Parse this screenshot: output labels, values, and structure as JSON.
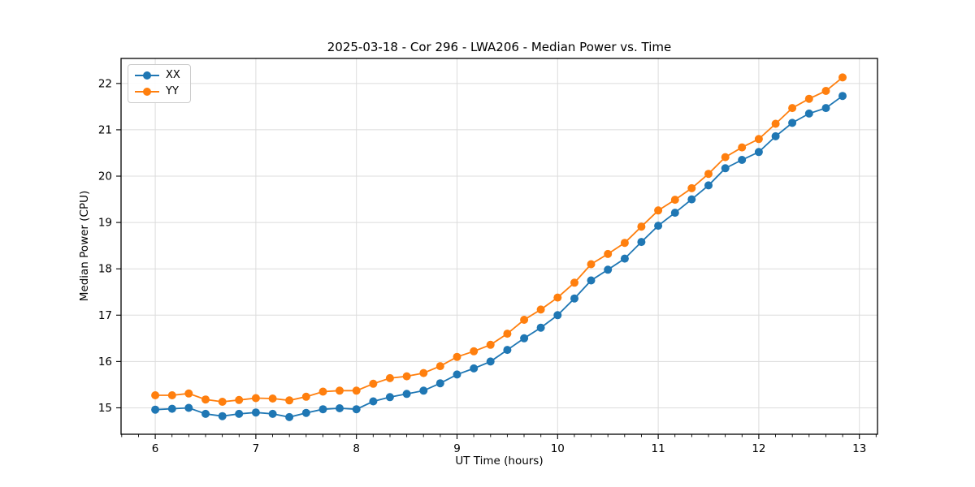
{
  "chart_data": {
    "type": "line",
    "title": "2025-03-18 - Cor 296 - LWA206 - Median Power vs. Time",
    "xlabel": "UT Time (hours)",
    "ylabel": "Median Power (CPU)",
    "xlim": [
      5.66,
      13.18
    ],
    "ylim": [
      14.43,
      22.54
    ],
    "xticks": [
      6,
      7,
      8,
      9,
      10,
      11,
      12,
      13
    ],
    "yticks": [
      15,
      16,
      17,
      18,
      19,
      20,
      21,
      22
    ],
    "grid": true,
    "grid_color": "#dcdcdc",
    "legend_position": "upper-left",
    "marker": "circle",
    "x": [
      6.0,
      6.167,
      6.333,
      6.5,
      6.667,
      6.833,
      7.0,
      7.167,
      7.333,
      7.5,
      7.667,
      7.833,
      8.0,
      8.167,
      8.333,
      8.5,
      8.667,
      8.833,
      9.0,
      9.167,
      9.333,
      9.5,
      9.667,
      9.833,
      10.0,
      10.167,
      10.333,
      10.5,
      10.667,
      10.833,
      11.0,
      11.167,
      11.333,
      11.5,
      11.667,
      11.833,
      12.0,
      12.167,
      12.333,
      12.5,
      12.667,
      12.833
    ],
    "series": [
      {
        "name": "XX",
        "color": "#1f77b4",
        "values": [
          14.96,
          14.98,
          15.0,
          14.87,
          14.82,
          14.87,
          14.9,
          14.87,
          14.8,
          14.89,
          14.97,
          14.99,
          14.97,
          15.14,
          15.23,
          15.3,
          15.37,
          15.53,
          15.72,
          15.85,
          16.0,
          16.25,
          16.5,
          16.73,
          17.0,
          17.36,
          17.75,
          17.98,
          18.22,
          18.58,
          18.93,
          19.21,
          19.5,
          19.8,
          20.17,
          20.35,
          20.52,
          20.86,
          21.15,
          21.35,
          21.47,
          21.73
        ]
      },
      {
        "name": "YY",
        "color": "#ff7f0e",
        "values": [
          15.27,
          15.27,
          15.31,
          15.18,
          15.13,
          15.17,
          15.21,
          15.2,
          15.16,
          15.24,
          15.35,
          15.37,
          15.37,
          15.52,
          15.64,
          15.68,
          15.75,
          15.9,
          16.1,
          16.22,
          16.36,
          16.6,
          16.9,
          17.12,
          17.38,
          17.7,
          18.1,
          18.32,
          18.56,
          18.91,
          19.26,
          19.49,
          19.74,
          20.05,
          20.41,
          20.62,
          20.8,
          21.13,
          21.47,
          21.67,
          21.84,
          22.13
        ]
      }
    ]
  }
}
